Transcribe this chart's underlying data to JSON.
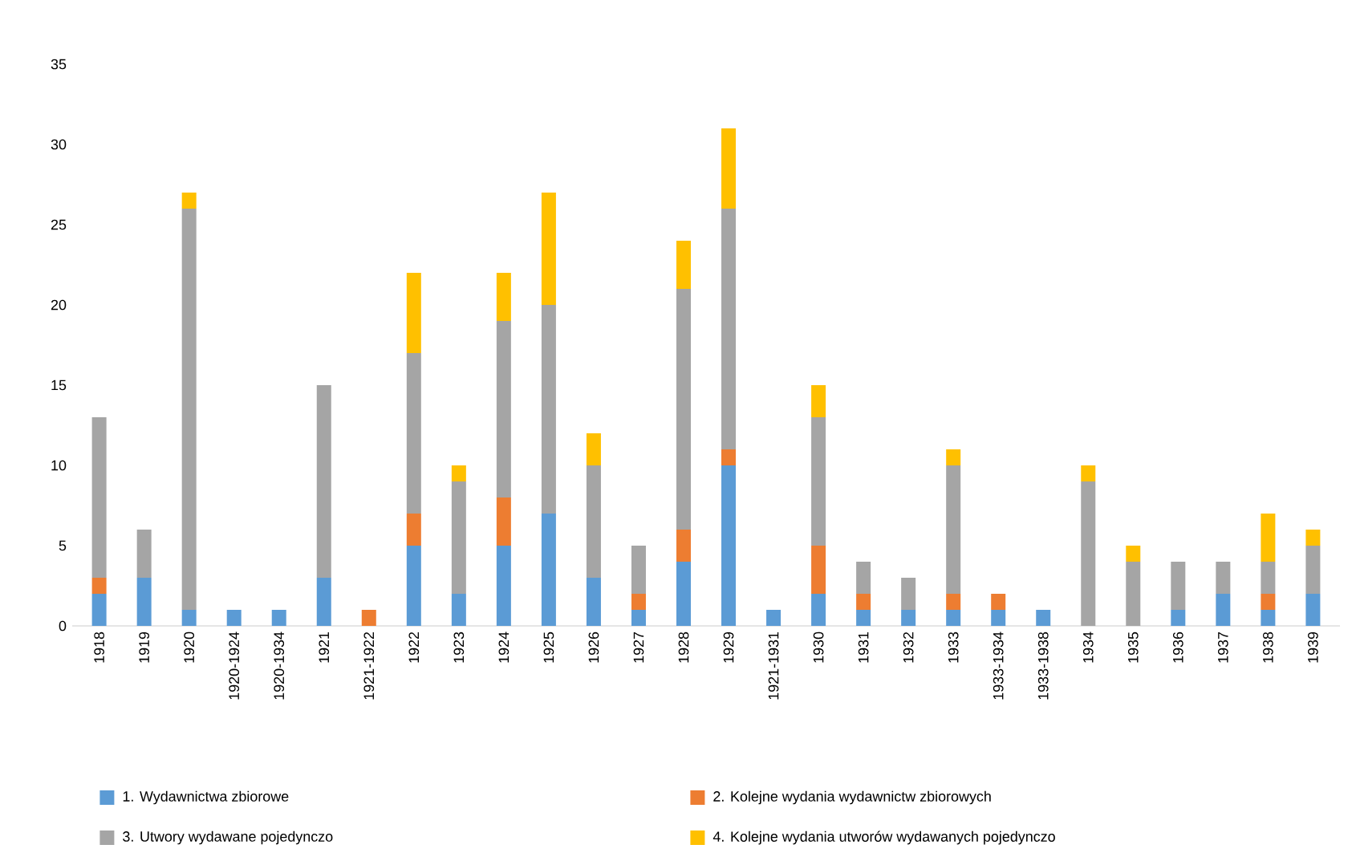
{
  "chart_data": {
    "type": "bar",
    "stacked": true,
    "legend": "bottom",
    "categories": [
      "1918",
      "1919",
      "1920",
      "1920-1924",
      "1920-1934",
      "1921",
      "1921-1922",
      "1922",
      "1923",
      "1924",
      "1925",
      "1926",
      "1927",
      "1928",
      "1929",
      "1921-1931",
      "1930",
      "1931",
      "1932",
      "1933",
      "1933-1934",
      "1933-1938",
      "1934",
      "1935",
      "1936",
      "1937",
      "1938",
      "1939"
    ],
    "ylim": [
      0,
      35
    ],
    "yticks": [
      0,
      5,
      10,
      15,
      20,
      25,
      30,
      35
    ],
    "series": [
      {
        "name": "1. Wydawnictwa zbiorowe",
        "color": "#5b9bd5",
        "values": [
          2,
          3,
          1,
          1,
          1,
          3,
          0,
          5,
          2,
          5,
          7,
          3,
          1,
          4,
          10,
          1,
          2,
          1,
          1,
          1,
          1,
          1,
          0,
          0,
          1,
          2,
          1,
          2
        ]
      },
      {
        "name": "2. Kolejne wydania wydawnictw zbiorowych",
        "color": "#ed7d31",
        "values": [
          1,
          0,
          0,
          0,
          0,
          0,
          1,
          2,
          0,
          3,
          0,
          0,
          1,
          2,
          1,
          0,
          3,
          1,
          0,
          1,
          1,
          0,
          0,
          0,
          0,
          0,
          1,
          0
        ]
      },
      {
        "name": "3. Utwory wydawane pojedynczo",
        "color": "#a5a5a5",
        "values": [
          10,
          3,
          25,
          0,
          0,
          12,
          0,
          10,
          7,
          11,
          13,
          7,
          3,
          15,
          15,
          0,
          8,
          2,
          2,
          8,
          0,
          0,
          9,
          4,
          3,
          2,
          2,
          3
        ]
      },
      {
        "name": "4. Kolejne wydania utworów wydawanych pojedynczo",
        "color": "#ffc000",
        "values": [
          0,
          0,
          1,
          0,
          0,
          0,
          0,
          5,
          1,
          3,
          7,
          2,
          0,
          3,
          5,
          0,
          2,
          0,
          0,
          1,
          0,
          0,
          1,
          1,
          0,
          0,
          3,
          1
        ]
      }
    ]
  }
}
